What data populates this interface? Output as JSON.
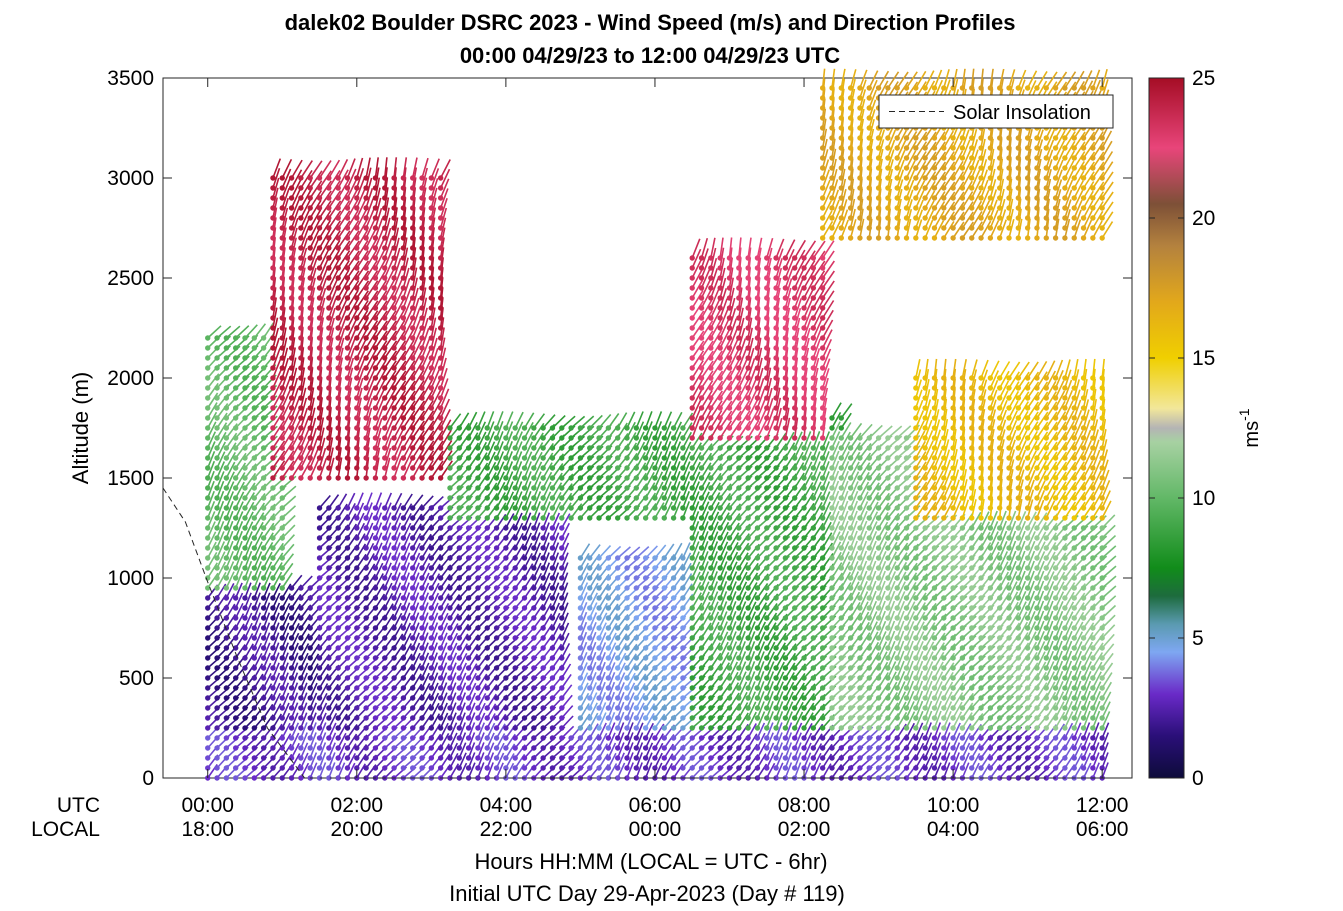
{
  "chart_data": {
    "type": "scatter",
    "style": "wind-barb-profiles",
    "title_line1": "dalek02 Boulder DSRC 2023 - Wind Speed (m/s) and Direction Profiles",
    "title_line2": "00:00 04/29/23 to 12:00 04/29/23  UTC",
    "ylabel": "Altitude (m)",
    "xlabel": "Hours HH:MM  (LOCAL = UTC - 6hr)",
    "xlabel2": "Initial UTC Day 29-Apr-2023 (Day # 119)",
    "xlim_hours": [
      -0.6,
      12.4
    ],
    "ylim": [
      0,
      3500
    ],
    "grid": false,
    "legend_position": "top-right",
    "yticks": [
      0,
      500,
      1000,
      1500,
      2000,
      2500,
      3000,
      3500
    ],
    "xticks_hours": [
      0,
      2,
      4,
      6,
      8,
      10,
      12
    ],
    "row_label_utc": "UTC",
    "row_label_local": "LOCAL",
    "xtick_labels_utc": [
      "00:00",
      "02:00",
      "04:00",
      "06:00",
      "08:00",
      "10:00",
      "12:00"
    ],
    "xtick_labels_local": [
      "18:00",
      "20:00",
      "22:00",
      "00:00",
      "02:00",
      "04:00",
      "06:00"
    ],
    "legend": {
      "entries": [
        "Solar Insolation"
      ]
    },
    "solar_insolation_curve": {
      "x_hours": [
        -0.6,
        -0.3,
        0.0,
        0.4,
        0.8,
        1.3,
        12.4
      ],
      "y": [
        1450,
        1280,
        980,
        600,
        250,
        0,
        0
      ]
    },
    "colorbar": {
      "label": "ms-1",
      "unit_base": "ms",
      "unit_exp": "-1",
      "range": [
        0,
        25
      ],
      "ticks": [
        0,
        5,
        10,
        15,
        20,
        25
      ],
      "stops": [
        {
          "v": 0,
          "c": "#0d0b3a"
        },
        {
          "v": 1.5,
          "c": "#2a0f78"
        },
        {
          "v": 3,
          "c": "#6a2ac8"
        },
        {
          "v": 4.5,
          "c": "#7ea7f2"
        },
        {
          "v": 5.5,
          "c": "#5a9ab0"
        },
        {
          "v": 6.5,
          "c": "#1d6b3d"
        },
        {
          "v": 7.5,
          "c": "#118c1a"
        },
        {
          "v": 10,
          "c": "#62b867"
        },
        {
          "v": 12,
          "c": "#a7d1a2"
        },
        {
          "v": 12.5,
          "c": "#b4b4b4"
        },
        {
          "v": 13.2,
          "c": "#f2e79a"
        },
        {
          "v": 15,
          "c": "#f0cf00"
        },
        {
          "v": 17,
          "c": "#e2a81b"
        },
        {
          "v": 19,
          "c": "#b4823e"
        },
        {
          "v": 20.5,
          "c": "#7d5037"
        },
        {
          "v": 22.5,
          "c": "#e8457a"
        },
        {
          "v": 25,
          "c": "#a50d25"
        }
      ]
    },
    "profiles_time_step_hours": 0.125,
    "profiles_altitude_step_m": 50,
    "speed_regimes": [
      {
        "x_range": [
          0.0,
          1.4
        ],
        "alt_range": [
          0,
          950
        ],
        "speed": 2
      },
      {
        "x_range": [
          0.0,
          1.0
        ],
        "alt_range": [
          950,
          2200
        ],
        "speed": 10
      },
      {
        "x_range": [
          0.8,
          3.2
        ],
        "alt_range": [
          1500,
          3000
        ],
        "speed": 24
      },
      {
        "x_range": [
          1.4,
          4.8
        ],
        "alt_range": [
          0,
          1350
        ],
        "speed": 2.5
      },
      {
        "x_range": [
          3.2,
          6.5
        ],
        "alt_range": [
          1300,
          1750
        ],
        "speed": 9
      },
      {
        "x_range": [
          5.0,
          6.5
        ],
        "alt_range": [
          0,
          1100
        ],
        "speed": 4.5
      },
      {
        "x_range": [
          6.5,
          8.5
        ],
        "alt_range": [
          200,
          1800
        ],
        "speed": 9
      },
      {
        "x_range": [
          6.5,
          8.3
        ],
        "alt_range": [
          1700,
          2600
        ],
        "speed": 23
      },
      {
        "x_range": [
          8.3,
          12.0
        ],
        "alt_range": [
          200,
          1700
        ],
        "speed": 11
      },
      {
        "x_range": [
          9.5,
          12.0
        ],
        "alt_range": [
          1300,
          2000
        ],
        "speed": 16
      },
      {
        "x_range": [
          8.2,
          12.0
        ],
        "alt_range": [
          2700,
          3450
        ],
        "speed": 17
      },
      {
        "x_range": [
          0.0,
          12.0
        ],
        "alt_range": [
          0,
          200
        ],
        "speed": 3
      }
    ]
  }
}
